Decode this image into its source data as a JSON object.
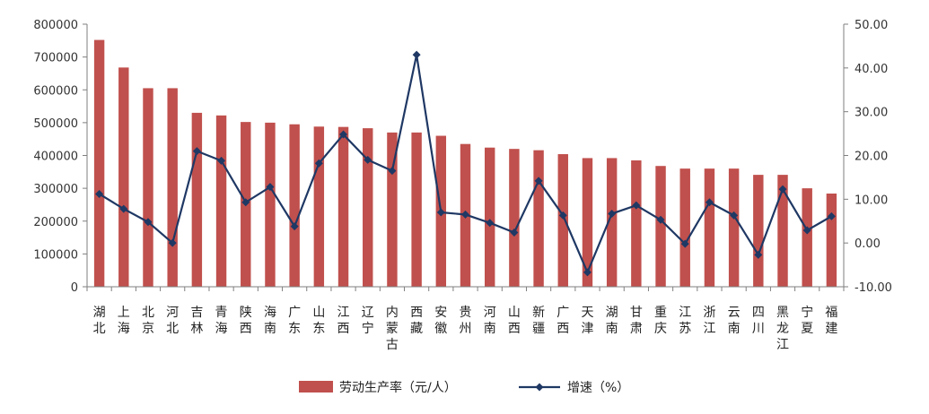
{
  "chart_data": {
    "type": "bar+line",
    "categories": [
      "湖北",
      "上海",
      "北京",
      "河北",
      "吉林",
      "青海",
      "陕西",
      "海南",
      "广东",
      "山东",
      "江西",
      "辽宁",
      "内蒙古",
      "西藏",
      "安徽",
      "贵州",
      "河南",
      "山西",
      "新疆",
      "广西",
      "天津",
      "湖南",
      "甘肃",
      "重庆",
      "江苏",
      "浙江",
      "云南",
      "四川",
      "黑龙江",
      "宁夏",
      "福建"
    ],
    "series": [
      {
        "name": "劳动生产率（元/人）",
        "type": "bar",
        "axis": "left",
        "color": "#c0504d",
        "values": [
          752000,
          668000,
          605000,
          605000,
          530000,
          522000,
          502000,
          500000,
          495000,
          488000,
          487000,
          483000,
          470000,
          470000,
          460000,
          435000,
          424000,
          420000,
          416000,
          404000,
          392000,
          392000,
          385000,
          368000,
          360000,
          360000,
          360000,
          341000,
          341000,
          300000,
          284000
        ]
      },
      {
        "name": "增速（%）",
        "type": "line",
        "axis": "right",
        "color": "#1f3864",
        "values": [
          11.2,
          7.8,
          4.8,
          0.0,
          21.0,
          18.8,
          9.3,
          12.8,
          3.8,
          18.2,
          24.8,
          19.0,
          16.5,
          43.0,
          7.0,
          6.5,
          4.6,
          2.4,
          14.2,
          6.3,
          -6.7,
          6.7,
          8.6,
          5.3,
          -0.2,
          9.3,
          6.3,
          -2.7,
          12.3,
          2.9,
          6.1
        ]
      }
    ],
    "y_left": {
      "ylim": [
        0,
        800000
      ],
      "ticks": [
        "0",
        "100000",
        "200000",
        "300000",
        "400000",
        "500000",
        "600000",
        "700000",
        "800000"
      ]
    },
    "y_right": {
      "ylim": [
        -10,
        50
      ],
      "ticks": [
        "-10.00",
        "0.00",
        "10.00",
        "20.00",
        "30.00",
        "40.00",
        "50.00"
      ]
    },
    "grid": false,
    "legend": "bottom"
  }
}
